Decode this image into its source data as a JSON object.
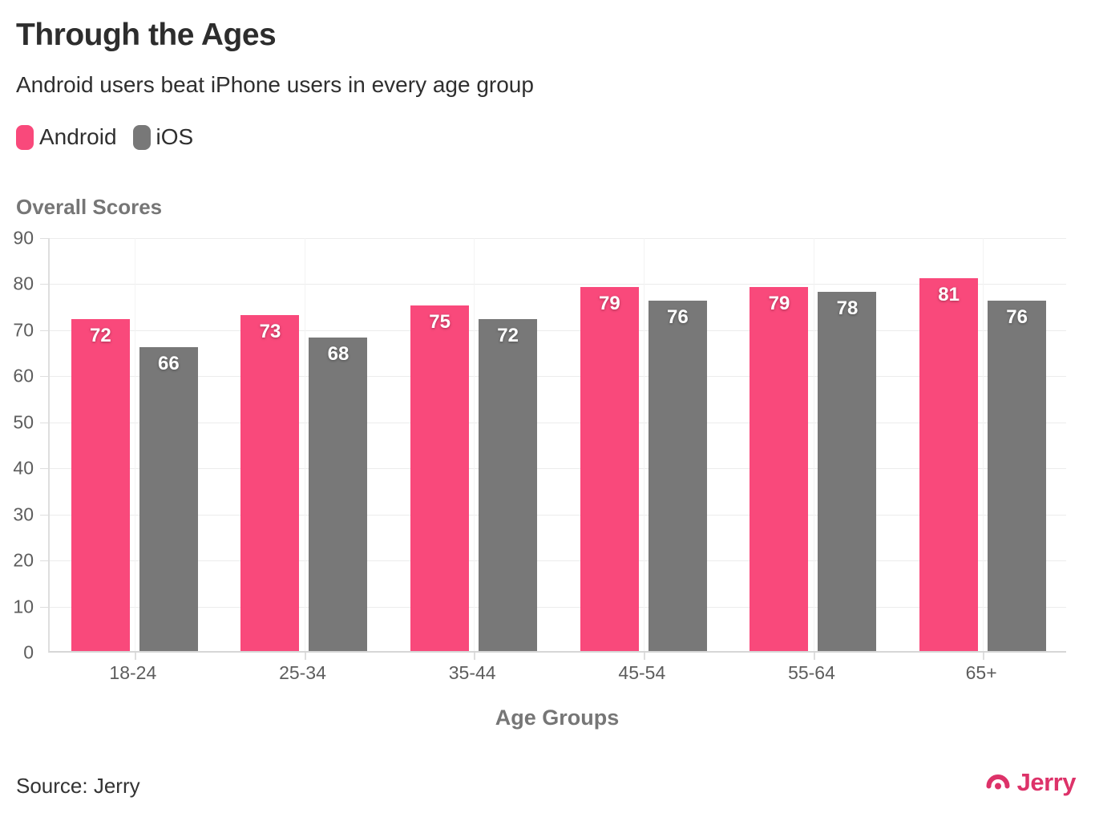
{
  "header": {
    "title": "Through the Ages",
    "subtitle": "Android users beat iPhone users in every age group"
  },
  "legend": [
    {
      "label": "Android",
      "color": "#f9497b"
    },
    {
      "label": "iOS",
      "color": "#787878"
    }
  ],
  "chart_data": {
    "type": "bar",
    "title": "Through the Ages",
    "subtitle": "Android users beat iPhone users in every age group",
    "categories": [
      "18-24",
      "25-34",
      "35-44",
      "45-54",
      "55-64",
      "65+"
    ],
    "series": [
      {
        "name": "Android",
        "color": "#f9497b",
        "values": [
          72,
          73,
          75,
          79,
          79,
          81
        ]
      },
      {
        "name": "iOS",
        "color": "#787878",
        "values": [
          66,
          68,
          72,
          76,
          78,
          76
        ]
      }
    ],
    "xlabel": "Age Groups",
    "ylabel": "Overall Scores",
    "ylim": [
      0,
      90
    ],
    "ytick_step": 10,
    "grid": true,
    "legend_position": "top-left",
    "value_labels": "inside-top"
  },
  "footer": {
    "source": "Source: Jerry",
    "brand": "Jerry"
  },
  "colors": {
    "android": "#f9497b",
    "ios": "#787878",
    "brand_pink": "#dd3269",
    "grid_h": "#ececec",
    "grid_v": "#f3f3f3",
    "axis": "#dedede",
    "tick_label": "#5d5d5d",
    "section_label": "#767676",
    "title_text": "#2d2d2d"
  }
}
